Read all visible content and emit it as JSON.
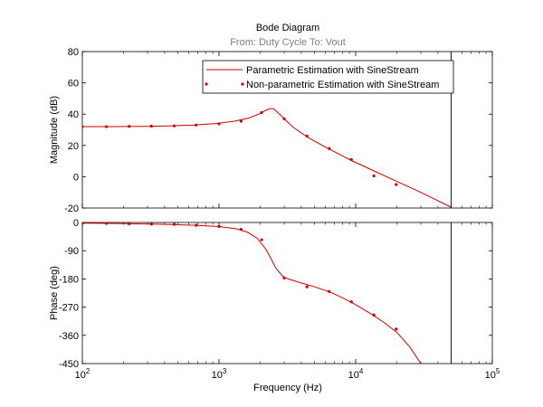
{
  "figure": {
    "title": "Bode Diagram",
    "subtitle": "From: Duty Cycle  To: Vout",
    "xlabel": "Frequency  (Hz)"
  },
  "colors": {
    "series": "#cc0000",
    "axes": "#000000",
    "background": "#ffffff",
    "subtitle": "#7f7f7f"
  },
  "chart_data": [
    {
      "type": "line",
      "panel": "magnitude",
      "ylabel": "Magnitude (dB)",
      "xscale": "log",
      "xlim": [
        100,
        100000
      ],
      "ylim": [
        -20,
        80
      ],
      "xticks": [
        100,
        1000,
        10000,
        100000
      ],
      "xtick_labels": [
        {
          "base": "10",
          "exp": "2"
        },
        {
          "base": "10",
          "exp": "3"
        },
        {
          "base": "10",
          "exp": "4"
        },
        {
          "base": "10",
          "exp": "5"
        }
      ],
      "yticks": [
        -20,
        0,
        20,
        40,
        60,
        80
      ],
      "ytick_labels": [
        "-20",
        "0",
        "20",
        "40",
        "60",
        "80"
      ],
      "vertical_line_x": 50000,
      "legend": {
        "placement": "top-right",
        "entries": [
          "Parametric Estimation with SineStream",
          "Non-parametric Estimation with SineStream"
        ]
      },
      "series": [
        {
          "name": "Parametric Estimation with SineStream",
          "style": "line",
          "x": [
            100,
            150,
            200,
            300,
            450,
            650,
            950,
            1300,
            1650,
            1950,
            2150,
            2350,
            2500,
            2700,
            3000,
            3500,
            4500,
            6000,
            9000,
            13000,
            20000,
            30000,
            50000
          ],
          "y": [
            32,
            32,
            32.1,
            32.2,
            32.5,
            33,
            34,
            35.5,
            37.5,
            40,
            42,
            43.5,
            43.5,
            41,
            37,
            31.5,
            25,
            19,
            11,
            4.5,
            -3,
            -10,
            -19.5
          ]
        },
        {
          "name": "Non-parametric Estimation with SineStream",
          "style": "markers",
          "x": [
            100,
            150,
            220,
            320,
            470,
            680,
            1000,
            1450,
            2050,
            3000,
            4400,
            6400,
            9300,
            13600,
            19800
          ],
          "y": [
            32,
            32,
            32.2,
            32.3,
            32.5,
            33,
            33.8,
            35.5,
            41,
            37,
            26,
            18,
            11,
            0.5,
            -5
          ]
        }
      ]
    },
    {
      "type": "line",
      "panel": "phase",
      "ylabel": "Phase (deg)",
      "xscale": "log",
      "xlim": [
        100,
        100000
      ],
      "ylim": [
        -450,
        0
      ],
      "xticks": [
        100,
        1000,
        10000,
        100000
      ],
      "xtick_labels": [
        {
          "base": "10",
          "exp": "2"
        },
        {
          "base": "10",
          "exp": "3"
        },
        {
          "base": "10",
          "exp": "4"
        },
        {
          "base": "10",
          "exp": "5"
        }
      ],
      "yticks": [
        -450,
        -360,
        -270,
        -180,
        -90,
        0
      ],
      "ytick_labels": [
        "-450",
        "-360",
        "-270",
        "-180",
        "-90",
        "0"
      ],
      "vertical_line_x": 50000,
      "series": [
        {
          "name": "Parametric Estimation with SineStream",
          "style": "line",
          "x": [
            100,
            150,
            220,
            320,
            470,
            680,
            1000,
            1300,
            1600,
            1900,
            2200,
            2400,
            2600,
            2900,
            3200,
            4000,
            5000,
            6500,
            8000,
            10000,
            13000,
            16000,
            20000,
            25000,
            30000
          ],
          "y": [
            -2,
            -3,
            -4,
            -5,
            -7,
            -9,
            -13,
            -19,
            -30,
            -50,
            -85,
            -115,
            -145,
            -170,
            -180,
            -193,
            -205,
            -222,
            -240,
            -262,
            -292,
            -318,
            -350,
            -398,
            -450
          ]
        },
        {
          "name": "Non-parametric Estimation with SineStream",
          "style": "markers",
          "x": [
            100,
            150,
            220,
            320,
            470,
            680,
            1000,
            1450,
            2050,
            3000,
            4400,
            6400,
            9300,
            13600,
            19800
          ],
          "y": [
            -2,
            -3,
            -4,
            -5,
            -6,
            -9,
            -13,
            -22,
            -55,
            -177,
            -205,
            -220,
            -253,
            -295,
            -340
          ]
        }
      ]
    }
  ]
}
